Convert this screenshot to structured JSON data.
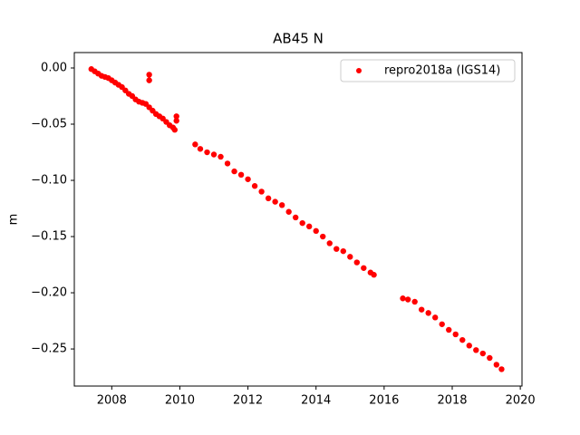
{
  "chart_data": {
    "type": "scatter",
    "title": "AB45 N",
    "ylabel": "m",
    "xlim": [
      2006.9,
      2020.05
    ],
    "ylim": [
      -0.283,
      0.0137
    ],
    "xticks": [
      2008,
      2010,
      2012,
      2014,
      2016,
      2018,
      2020
    ],
    "yticks": [
      {
        "value": 0,
        "label": "0.00"
      },
      {
        "value": -0.05,
        "label": "−0.05"
      },
      {
        "value": -0.1,
        "label": "−0.10"
      },
      {
        "value": -0.15,
        "label": "−0.15"
      },
      {
        "value": -0.2,
        "label": "−0.20"
      },
      {
        "value": -0.25,
        "label": "−0.25"
      }
    ],
    "legend": "upper right",
    "series": [
      {
        "name": "repro2018a (IGS14)",
        "color": "#ff0000",
        "x": [
          2007.4,
          2007.5,
          2007.6,
          2007.7,
          2007.8,
          2007.9,
          2008.0,
          2008.1,
          2008.2,
          2008.3,
          2008.4,
          2008.5,
          2008.6,
          2008.7,
          2008.8,
          2008.9,
          2009.0,
          2009.1,
          2009.2,
          2009.3,
          2009.4,
          2009.5,
          2009.6,
          2009.7,
          2009.8,
          2009.85,
          2009.1,
          2009.1,
          2009.9,
          2009.9,
          2010.45,
          2010.6,
          2010.8,
          2011.0,
          2011.2,
          2011.4,
          2011.6,
          2011.8,
          2012.0,
          2012.2,
          2012.4,
          2012.6,
          2012.8,
          2013.0,
          2013.2,
          2013.4,
          2013.6,
          2013.8,
          2014.0,
          2014.2,
          2014.4,
          2014.6,
          2014.8,
          2015.0,
          2015.2,
          2015.4,
          2015.6,
          2015.7,
          2016.55,
          2016.7,
          2016.9,
          2017.1,
          2017.3,
          2017.5,
          2017.7,
          2017.9,
          2018.1,
          2018.3,
          2018.5,
          2018.7,
          2018.9,
          2019.1,
          2019.3,
          2019.45
        ],
        "values": [
          -0.001,
          -0.003,
          -0.005,
          -0.007,
          -0.008,
          -0.009,
          -0.011,
          -0.013,
          -0.015,
          -0.017,
          -0.02,
          -0.023,
          -0.025,
          -0.028,
          -0.03,
          -0.031,
          -0.032,
          -0.035,
          -0.038,
          -0.041,
          -0.043,
          -0.045,
          -0.048,
          -0.051,
          -0.053,
          -0.055,
          -0.006,
          -0.011,
          -0.043,
          -0.047,
          -0.068,
          -0.072,
          -0.075,
          -0.077,
          -0.079,
          -0.085,
          -0.092,
          -0.095,
          -0.099,
          -0.105,
          -0.11,
          -0.116,
          -0.119,
          -0.122,
          -0.128,
          -0.133,
          -0.138,
          -0.141,
          -0.145,
          -0.15,
          -0.156,
          -0.161,
          -0.163,
          -0.168,
          -0.173,
          -0.178,
          -0.182,
          -0.184,
          -0.205,
          -0.206,
          -0.208,
          -0.215,
          -0.218,
          -0.222,
          -0.228,
          -0.233,
          -0.237,
          -0.242,
          -0.247,
          -0.251,
          -0.254,
          -0.258,
          -0.264,
          -0.268
        ]
      }
    ]
  }
}
